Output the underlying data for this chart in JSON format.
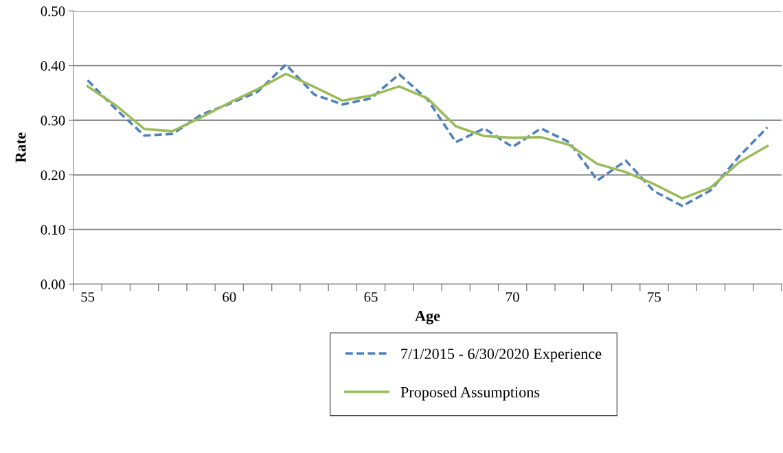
{
  "chart_data": {
    "type": "line",
    "xlabel": "Age",
    "ylabel": "Rate",
    "categories": [
      "55",
      null,
      null,
      null,
      null,
      "60",
      null,
      null,
      null,
      null,
      "65",
      null,
      null,
      null,
      null,
      "70",
      null,
      null,
      null,
      null,
      "75",
      null,
      null,
      null,
      null
    ],
    "series": [
      {
        "name": "7/1/2015 - 6/30/2020 Experience",
        "color": "#4f81bd",
        "line_style": "dashed",
        "values": [
          0.373,
          0.32,
          0.272,
          0.275,
          0.31,
          0.33,
          0.352,
          0.402,
          0.347,
          0.329,
          0.34,
          0.384,
          0.338,
          0.26,
          0.285,
          0.251,
          0.285,
          0.26,
          0.19,
          0.226,
          0.17,
          0.143,
          0.172,
          0.234,
          0.287
        ]
      },
      {
        "name": "Proposed Assumptions",
        "color": "#9bbb59",
        "line_style": "solid",
        "values": [
          0.362,
          0.327,
          0.284,
          0.28,
          0.305,
          0.332,
          0.357,
          0.385,
          0.361,
          0.336,
          0.345,
          0.362,
          0.34,
          0.289,
          0.271,
          0.268,
          0.269,
          0.255,
          0.22,
          0.205,
          0.183,
          0.157,
          0.177,
          0.223,
          0.253
        ]
      }
    ],
    "ylim": [
      0,
      0.5
    ],
    "yticks": [
      {
        "value": 0,
        "label": "0.00"
      },
      {
        "value": 0.1,
        "label": "0.10"
      },
      {
        "value": 0.2,
        "label": "0.20"
      },
      {
        "value": 0.3,
        "label": "0.30"
      },
      {
        "value": 0.4,
        "label": "0.40"
      },
      {
        "value": 0.5,
        "label": "0.50"
      }
    ],
    "grid": "y",
    "legend": "bottom",
    "marker": "none"
  }
}
